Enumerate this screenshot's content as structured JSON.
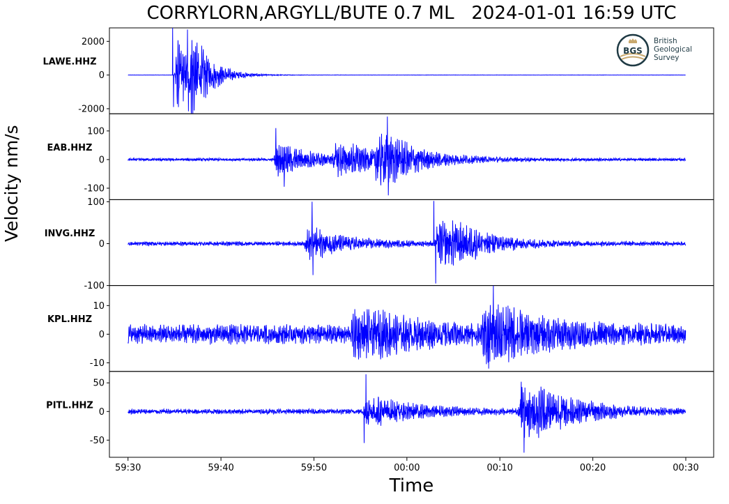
{
  "title": "CORRYLORN,ARGYLL/BUTE 0.7 ML   2024-01-01 16:59 UTC",
  "ylabel": "Velocity nm/s",
  "xlabel": "Time",
  "logo": {
    "badge": "BGS",
    "line1": "British",
    "line2": "Geological",
    "line3": "Survey"
  },
  "colors": {
    "trace": "#0000ff",
    "frame": "#000000",
    "logo": "#1f3a44",
    "logo_accent": "#c9a96e"
  },
  "chart_data": {
    "type": "line",
    "x_unit": "time (mm:ss), 2024-01-01 16:59:30 to 17:00:30 UTC",
    "x_ticks": [
      "59:30",
      "59:40",
      "59:50",
      "00:00",
      "00:10",
      "00:20",
      "00:30"
    ],
    "xlim": [
      "59:28",
      "00:33"
    ],
    "grid": false,
    "panels": [
      {
        "station": "LAWE.HHZ",
        "ylim": [
          -2300,
          2800
        ],
        "yticks": [
          2000,
          0,
          -2000
        ],
        "ytick_labels": [
          "2000",
          "0",
          "-2000"
        ],
        "noise_amp": 8,
        "events": [
          {
            "t": 35.0,
            "amp": 2200,
            "decay": 1.6,
            "width": 0.4
          },
          {
            "t": 36.5,
            "amp": 2200,
            "decay": 2.0,
            "width": 0.4
          }
        ],
        "peaks": [
          {
            "t": 34.8,
            "v": 2800
          },
          {
            "t": 34.9,
            "v": -1900
          },
          {
            "t": 36.4,
            "v": 2700
          },
          {
            "t": 36.5,
            "v": -2150
          }
        ]
      },
      {
        "station": "EAB.HHZ",
        "ylim": [
          -140,
          160
        ],
        "yticks": [
          100,
          0,
          -100
        ],
        "ytick_labels": [
          "100",
          "0",
          "-100"
        ],
        "noise_amp": 5,
        "events": [
          {
            "t": 45.7,
            "amp": 55,
            "decay": 4.0,
            "width": 1.0
          },
          {
            "t": 52.0,
            "amp": 45,
            "decay": 3.0,
            "width": 2.5
          },
          {
            "t": 56.5,
            "amp": 70,
            "decay": 4.0,
            "width": 2.0
          }
        ],
        "peaks": [
          {
            "t": 45.9,
            "v": 110
          },
          {
            "t": 46.8,
            "v": -95
          },
          {
            "t": 57.9,
            "v": 150
          },
          {
            "t": 58.0,
            "v": -125
          }
        ]
      },
      {
        "station": "INVG.HHZ",
        "ylim": [
          -100,
          105
        ],
        "yticks": [
          100,
          0,
          -100
        ],
        "ytick_labels": [
          "100",
          "0",
          "-100"
        ],
        "noise_amp": 5,
        "events": [
          {
            "t": 49.0,
            "amp": 35,
            "decay": 4.0,
            "width": 1.0
          },
          {
            "t": 63.0,
            "amp": 50,
            "decay": 4.0,
            "width": 2.5
          }
        ],
        "peaks": [
          {
            "t": 49.8,
            "v": 100
          },
          {
            "t": 49.9,
            "v": -75
          },
          {
            "t": 62.9,
            "v": 102
          },
          {
            "t": 63.1,
            "v": -95
          }
        ]
      },
      {
        "station": "KPL.HHZ",
        "ylim": [
          -13,
          17
        ],
        "yticks": [
          10,
          0,
          -10
        ],
        "ytick_labels": [
          "10",
          "0",
          "-10"
        ],
        "noise_amp": 3.5,
        "events": [
          {
            "t": 54.0,
            "amp": 5.5,
            "decay": 5.0,
            "width": 3.0
          },
          {
            "t": 68.0,
            "amp": 6.5,
            "decay": 5.0,
            "width": 3.0
          }
        ],
        "peaks": [
          {
            "t": 69.3,
            "v": 17
          },
          {
            "t": 68.8,
            "v": -12
          }
        ]
      },
      {
        "station": "PITL.HHZ",
        "ylim": [
          -80,
          70
        ],
        "yticks": [
          50,
          0,
          -50
        ],
        "ytick_labels": [
          "50",
          "0",
          "-50"
        ],
        "noise_amp": 4.5,
        "events": [
          {
            "t": 55.3,
            "amp": 25,
            "decay": 5.0,
            "width": 1.0
          },
          {
            "t": 72.0,
            "amp": 40,
            "decay": 4.5,
            "width": 3.0
          }
        ],
        "peaks": [
          {
            "t": 55.6,
            "v": 65
          },
          {
            "t": 55.4,
            "v": -55
          },
          {
            "t": 72.3,
            "v": 52
          },
          {
            "t": 72.6,
            "v": -72
          }
        ]
      }
    ]
  }
}
